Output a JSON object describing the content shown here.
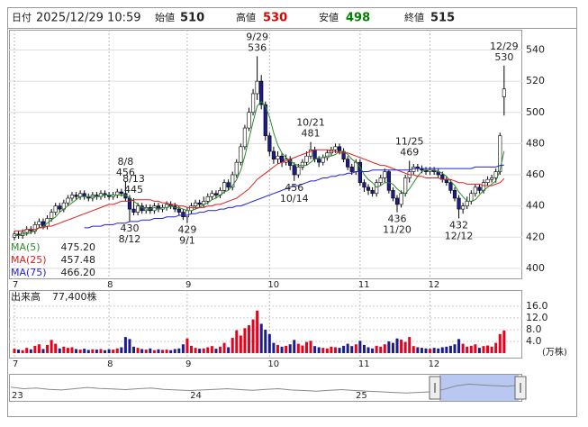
{
  "header": {
    "date_label": "日付",
    "datetime": "2025/12/29 10:59",
    "open_label": "始値",
    "open": 510,
    "high_label": "高値",
    "high": 530,
    "low_label": "安値",
    "low": 498,
    "close_label": "終値",
    "close": 515
  },
  "chart_data": {
    "type": "candlestick",
    "categories": [
      "7",
      null,
      null,
      null,
      null,
      null,
      null,
      null,
      null,
      null,
      null,
      null,
      null,
      null,
      null,
      null,
      null,
      null,
      null,
      null,
      null,
      null,
      null,
      "8",
      null,
      null,
      null,
      null,
      null,
      null,
      null,
      null,
      null,
      null,
      null,
      null,
      null,
      null,
      null,
      null,
      null,
      null,
      "9",
      null,
      null,
      null,
      null,
      null,
      null,
      null,
      null,
      null,
      null,
      null,
      null,
      null,
      null,
      null,
      null,
      null,
      null,
      null,
      "10",
      null,
      null,
      null,
      null,
      null,
      null,
      null,
      null,
      null,
      null,
      null,
      null,
      null,
      null,
      null,
      null,
      null,
      null,
      null,
      null,
      null,
      "11",
      null,
      null,
      null,
      null,
      null,
      null,
      null,
      null,
      null,
      null,
      null,
      null,
      null,
      null,
      null,
      null,
      "12",
      null,
      null,
      null,
      null,
      null,
      null,
      null,
      null,
      null,
      null,
      null,
      null,
      null,
      null,
      null,
      null,
      null,
      null
    ],
    "open": [
      420,
      422,
      421,
      423,
      425,
      424,
      428,
      430,
      427,
      432,
      436,
      440,
      438,
      442,
      445,
      447,
      446,
      448,
      446,
      445,
      447,
      446,
      448,
      447,
      446,
      447,
      449,
      448,
      445,
      438,
      436,
      440,
      437,
      439,
      437,
      440,
      438,
      439,
      441,
      440,
      438,
      436,
      433,
      437,
      440,
      442,
      441,
      443,
      446,
      448,
      447,
      450,
      455,
      452,
      460,
      468,
      478,
      490,
      500,
      512,
      520,
      505,
      485,
      475,
      470,
      472,
      468,
      470,
      466,
      460,
      465,
      468,
      472,
      476,
      470,
      468,
      471,
      474,
      476,
      478,
      475,
      470,
      465,
      462,
      468,
      455,
      452,
      450,
      448,
      455,
      458,
      462,
      450,
      445,
      441,
      448,
      458,
      462,
      465,
      464,
      463,
      462,
      463,
      462,
      460,
      457,
      455,
      450,
      445,
      438,
      440,
      443,
      448,
      452,
      450,
      455,
      457,
      458,
      462,
      510
    ],
    "high": [
      424,
      424,
      425,
      427,
      427,
      430,
      432,
      432,
      434,
      438,
      442,
      442,
      444,
      447,
      449,
      449,
      450,
      450,
      448,
      449,
      449,
      450,
      450,
      449,
      449,
      451,
      451,
      456,
      447,
      445,
      442,
      442,
      441,
      441,
      442,
      442,
      441,
      443,
      443,
      442,
      440,
      438,
      439,
      442,
      444,
      444,
      446,
      448,
      450,
      450,
      452,
      457,
      457,
      462,
      470,
      480,
      492,
      503,
      515,
      536,
      524,
      507,
      487,
      478,
      475,
      474,
      473,
      472,
      468,
      467,
      470,
      475,
      481,
      478,
      472,
      473,
      476,
      478,
      480,
      480,
      477,
      472,
      467,
      470,
      470,
      457,
      454,
      452,
      457,
      460,
      464,
      463,
      452,
      447,
      450,
      460,
      469,
      467,
      467,
      466,
      465,
      465,
      465,
      464,
      462,
      459,
      457,
      452,
      447,
      442,
      446,
      450,
      454,
      454,
      457,
      459,
      460,
      464,
      487,
      530
    ],
    "low": [
      418,
      419,
      419,
      421,
      422,
      422,
      426,
      425,
      425,
      430,
      434,
      436,
      436,
      440,
      443,
      444,
      444,
      444,
      443,
      443,
      444,
      444,
      445,
      444,
      444,
      445,
      446,
      443,
      430,
      434,
      434,
      435,
      435,
      435,
      435,
      436,
      436,
      437,
      438,
      436,
      434,
      431,
      429,
      435,
      438,
      439,
      439,
      441,
      444,
      445,
      445,
      448,
      450,
      450,
      458,
      466,
      476,
      488,
      498,
      508,
      502,
      482,
      472,
      467,
      467,
      465,
      466,
      463,
      456,
      458,
      463,
      466,
      470,
      468,
      465,
      466,
      469,
      472,
      474,
      473,
      468,
      463,
      460,
      460,
      453,
      449,
      447,
      446,
      446,
      453,
      455,
      448,
      443,
      436,
      439,
      446,
      455,
      460,
      462,
      461,
      460,
      460,
      460,
      458,
      455,
      453,
      448,
      443,
      432,
      435,
      438,
      441,
      446,
      448,
      448,
      453,
      455,
      455,
      460,
      498
    ],
    "close": [
      422,
      421,
      423,
      425,
      424,
      428,
      430,
      427,
      432,
      436,
      440,
      438,
      442,
      445,
      447,
      446,
      448,
      446,
      445,
      447,
      446,
      448,
      447,
      446,
      447,
      449,
      448,
      445,
      438,
      436,
      440,
      437,
      439,
      437,
      440,
      438,
      439,
      441,
      440,
      438,
      436,
      433,
      437,
      440,
      442,
      441,
      443,
      446,
      448,
      447,
      450,
      455,
      452,
      460,
      468,
      478,
      490,
      500,
      512,
      520,
      505,
      485,
      475,
      470,
      472,
      468,
      470,
      466,
      460,
      465,
      468,
      472,
      476,
      470,
      468,
      471,
      474,
      476,
      478,
      475,
      470,
      465,
      462,
      468,
      455,
      452,
      450,
      448,
      455,
      458,
      462,
      450,
      445,
      441,
      448,
      458,
      462,
      465,
      464,
      463,
      462,
      463,
      462,
      460,
      457,
      455,
      450,
      445,
      438,
      440,
      443,
      448,
      452,
      450,
      455,
      457,
      458,
      462,
      485,
      515
    ],
    "colors": {
      "up": "#ffffff",
      "down": "#1c1c8c",
      "outline": "#000000",
      "up_volume": "#e8001c",
      "down_volume": "#1c1c8c"
    },
    "ylim": [
      393,
      553
    ],
    "yticks": [
      400,
      420,
      440,
      460,
      480,
      500,
      520,
      540
    ],
    "grid": true,
    "series": [
      {
        "name": "MA(5)",
        "color": "#2e8b2e",
        "last": {
          "value": 475.2,
          "label": "475.20"
        },
        "values": [
          421,
          421,
          422,
          422,
          423,
          424,
          426,
          427,
          429,
          431,
          433,
          436,
          438,
          440,
          442,
          444,
          446,
          446,
          446,
          446,
          446,
          446,
          447,
          447,
          447,
          447,
          447,
          447,
          445,
          443,
          441,
          439,
          438,
          438,
          439,
          438,
          439,
          439,
          440,
          439,
          439,
          438,
          437,
          437,
          438,
          439,
          441,
          442,
          444,
          445,
          447,
          449,
          450,
          453,
          457,
          463,
          472,
          483,
          494,
          504,
          507,
          504,
          497,
          487,
          479,
          474,
          471,
          469,
          467,
          466,
          466,
          466,
          468,
          470,
          471,
          471,
          472,
          472,
          473,
          475,
          475,
          473,
          470,
          468,
          465,
          460,
          457,
          455,
          452,
          453,
          455,
          455,
          454,
          451,
          449,
          448,
          451,
          455,
          459,
          462,
          463,
          463,
          463,
          462,
          461,
          459,
          456,
          453,
          449,
          446,
          443,
          443,
          444,
          447,
          450,
          452,
          454,
          456,
          463,
          475.2
        ]
      },
      {
        "name": "MA(25)",
        "color": "#e02020",
        "last": {
          "value": 457.48,
          "label": "457.48"
        },
        "values": [
          424,
          424,
          424,
          425,
          425,
          425,
          426,
          426,
          427,
          427,
          428,
          429,
          430,
          431,
          432,
          433,
          434,
          435,
          436,
          437,
          438,
          439,
          440,
          441,
          441,
          442,
          443,
          443,
          443,
          444,
          444,
          444,
          444,
          444,
          443,
          443,
          442,
          442,
          441,
          441,
          440,
          440,
          439,
          439,
          439,
          439,
          439,
          440,
          440,
          441,
          441,
          442,
          443,
          444,
          445,
          447,
          449,
          451,
          454,
          457,
          459,
          461,
          463,
          465,
          467,
          468,
          469,
          470,
          471,
          472,
          473,
          474,
          475,
          476,
          476,
          476,
          476,
          475,
          475,
          474,
          474,
          474,
          473,
          472,
          471,
          470,
          469,
          468,
          467,
          466,
          466,
          465,
          464,
          463,
          462,
          461,
          460,
          460,
          459,
          459,
          458,
          458,
          458,
          458,
          457,
          457,
          457,
          456,
          455,
          455,
          454,
          454,
          454,
          454,
          453,
          453,
          453,
          454,
          455,
          457.48
        ]
      },
      {
        "name": "MA(75)",
        "color": "#2020e0",
        "last": {
          "value": 466.2,
          "label": "466.20"
        },
        "values": [
          null,
          null,
          null,
          null,
          null,
          null,
          null,
          null,
          null,
          null,
          null,
          null,
          null,
          null,
          null,
          null,
          null,
          426,
          426,
          427,
          427,
          427,
          428,
          428,
          428,
          429,
          429,
          429,
          430,
          430,
          430,
          431,
          431,
          431,
          432,
          432,
          432,
          433,
          433,
          433,
          434,
          434,
          434,
          435,
          435,
          436,
          436,
          437,
          437,
          437,
          438,
          438,
          439,
          439,
          440,
          440,
          441,
          442,
          443,
          444,
          445,
          446,
          447,
          448,
          449,
          450,
          451,
          452,
          453,
          453,
          454,
          455,
          456,
          456,
          457,
          458,
          458,
          459,
          459,
          460,
          460,
          461,
          461,
          462,
          462,
          462,
          462,
          463,
          463,
          463,
          463,
          463,
          463,
          463,
          463,
          463,
          463,
          464,
          464,
          464,
          464,
          464,
          464,
          464,
          464,
          464,
          464,
          464,
          464,
          464,
          464,
          464,
          465,
          465,
          465,
          465,
          465,
          465,
          466,
          466.2
        ]
      }
    ],
    "annotations": [
      {
        "date": "8/8",
        "value": 456,
        "side": "high"
      },
      {
        "date": "8/13",
        "value": 445,
        "side": "high"
      },
      {
        "date": "8/12",
        "value": 430,
        "side": "low"
      },
      {
        "date": "9/1",
        "value": 429,
        "side": "low"
      },
      {
        "date": "9/29",
        "value": 536,
        "side": "high"
      },
      {
        "date": "10/14",
        "value": 456,
        "side": "low"
      },
      {
        "date": "10/21",
        "value": 481,
        "side": "high"
      },
      {
        "date": "11/20",
        "value": 436,
        "side": "low"
      },
      {
        "date": "11/25",
        "value": 469,
        "side": "high"
      },
      {
        "date": "12/12",
        "value": 432,
        "side": "low"
      },
      {
        "date": "12/29",
        "value": 530,
        "side": "high"
      }
    ],
    "volume": {
      "name": "出来高",
      "current": {
        "value": 77400,
        "label": "77,400株"
      },
      "unit": "(万株)",
      "ylim": [
        0,
        21.5
      ],
      "yticks": [
        {
          "value": 4,
          "label": "4.0"
        },
        {
          "value": 8,
          "label": "8.0"
        },
        {
          "value": 12,
          "label": "12.0"
        },
        {
          "value": 16,
          "label": "16.0"
        }
      ],
      "values": [
        1.5,
        1.2,
        1.0,
        1.8,
        1.3,
        2.5,
        3.0,
        1.4,
        2.8,
        4.5,
        3.2,
        1.6,
        2.2,
        1.8,
        2.0,
        1.4,
        1.2,
        1.5,
        1.1,
        1.3,
        1.2,
        1.4,
        1.0,
        1.3,
        1.2,
        1.6,
        2.0,
        5.5,
        4.8,
        2.2,
        1.8,
        1.4,
        1.2,
        1.6,
        1.0,
        1.3,
        1.1,
        1.2,
        1.0,
        1.4,
        1.6,
        3.0,
        5.0,
        2.5,
        1.8,
        1.5,
        1.6,
        2.0,
        2.4,
        1.5,
        2.2,
        3.5,
        2.0,
        5.2,
        7.8,
        6.0,
        8.5,
        9.5,
        11.5,
        14.5,
        10.0,
        8.0,
        6.5,
        3.5,
        2.8,
        2.2,
        2.5,
        3.0,
        4.5,
        3.2,
        2.6,
        3.8,
        4.2,
        2.4,
        2.0,
        1.8,
        1.6,
        2.2,
        2.0,
        1.8,
        2.5,
        3.2,
        2.4,
        3.0,
        4.2,
        2.8,
        2.0,
        1.6,
        2.5,
        2.2,
        3.0,
        4.0,
        3.5,
        5.0,
        4.6,
        3.8,
        5.5,
        2.4,
        2.0,
        1.8,
        1.6,
        1.5,
        1.8,
        1.6,
        2.0,
        2.2,
        2.5,
        3.0,
        4.8,
        3.2,
        2.2,
        2.5,
        3.0,
        1.8,
        2.4,
        2.6,
        2.2,
        3.5,
        6.5,
        7.74
      ]
    },
    "navigator": {
      "categories": [
        "23",
        null,
        null,
        null,
        null,
        null,
        null,
        null,
        null,
        null,
        null,
        null,
        null,
        null,
        "24",
        null,
        null,
        null,
        null,
        null,
        null,
        null,
        null,
        null,
        null,
        null,
        null,
        "25",
        null,
        null,
        null,
        null,
        null,
        null,
        null,
        null,
        null,
        null,
        null,
        null,
        null
      ],
      "ylim": [
        400,
        480
      ],
      "color": "#888888",
      "values": [
        445,
        440,
        442,
        438,
        436,
        440,
        444,
        441,
        439,
        437,
        440,
        442,
        438,
        436,
        434,
        436,
        438,
        440,
        437,
        435,
        438,
        440,
        436,
        434,
        432,
        435,
        437,
        434,
        432,
        430,
        428,
        426,
        428,
        430,
        438,
        450,
        455,
        452,
        450,
        448,
        452
      ]
    }
  }
}
